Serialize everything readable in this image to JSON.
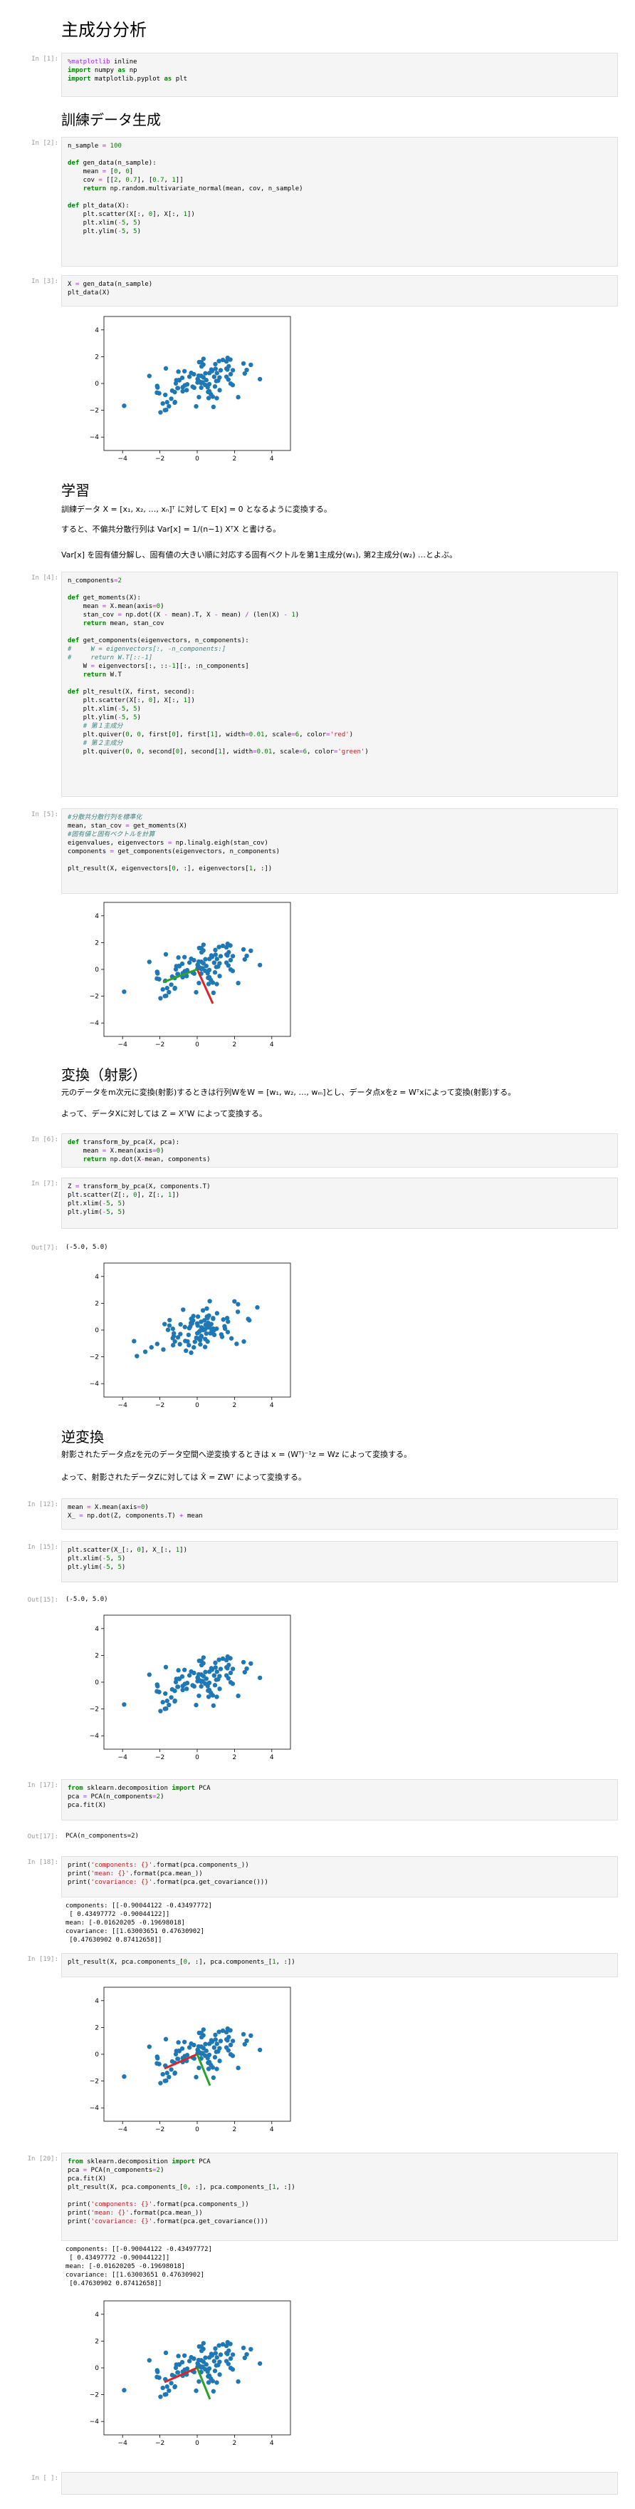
{
  "title": "主成分分析",
  "headings": {
    "train": "訓練データ生成",
    "learn": "学習",
    "transform": "変換（射影）",
    "inverse": "逆変換"
  },
  "prompts": {
    "p1": "In [1]:",
    "p2": "In [2]:",
    "p3": "In [3]:",
    "p4": "In [4]:",
    "p5": "In [5]:",
    "p6": "In [6]:",
    "p7": "In [7]:",
    "p7o": "Out[7]:",
    "p12": "In [12]:",
    "p15": "In [15]:",
    "p15o": "Out[15]:",
    "p17": "In [17]:",
    "p17o": "Out[17]:",
    "p18": "In [18]:",
    "p19": "In [19]:",
    "p20": "In [20]:",
    "pend": "In [ ]:"
  },
  "markdown": {
    "learn1": "訓練データ X = [x₁, x₂, …, xₙ]ᵀ に対して E[x] = 0 となるように変換する。",
    "learn2": "すると、不偏共分散行列は Var[x] = 1/(n−1) XᵀX と書ける。",
    "learn3": "Var[x] を固有値分解し、固有値の大きい順に対応する固有ベクトルを第1主成分(w₁), 第2主成分(w₂) …とよぶ。",
    "trans1": "元のデータをm次元に変換(射影)するときは行列WをW = [w₁, w₂, …, wₘ]とし、データ点xをz = Wᵀxによって変換(射影)する。",
    "trans2": "よって、データXに対しては Z = XᵀW によって変換する。",
    "inv1": "射影されたデータ点zを元のデータ空間へ逆変換するときは x = (Wᵀ)⁻¹z = Wz によって変換する。",
    "inv2": "よって、射影されたデータZに対しては X̂ = ZWᵀ によって変換する。"
  },
  "outputs": {
    "out7": "(-5.0, 5.0)",
    "out15": "(-5.0, 5.0)",
    "out17": "PCA(n_components=2)",
    "out18": "components: [[-0.90044122 -0.43497772]\n [ 0.43497772 -0.90044122]]\nmean: [-0.01620205 -0.19698018]\ncovariance: [[1.63003651 0.47630902]\n [0.47630902 0.87412658]]",
    "out20": "components: [[-0.90044122 -0.43497772]\n [ 0.43497772 -0.90044122]]\nmean: [-0.01620205 -0.19698018]\ncovariance: [[1.63003651 0.47630902]\n [0.47630902 0.87412658]]"
  },
  "plot_ticks": {
    "x": [
      "−4",
      "−2",
      "0",
      "2",
      "4"
    ],
    "y": [
      "4",
      "2",
      "0",
      "−2",
      "−4"
    ]
  },
  "colors": {
    "points": "#1f77b4",
    "first": "#d62728",
    "second": "#2ca02c"
  }
}
